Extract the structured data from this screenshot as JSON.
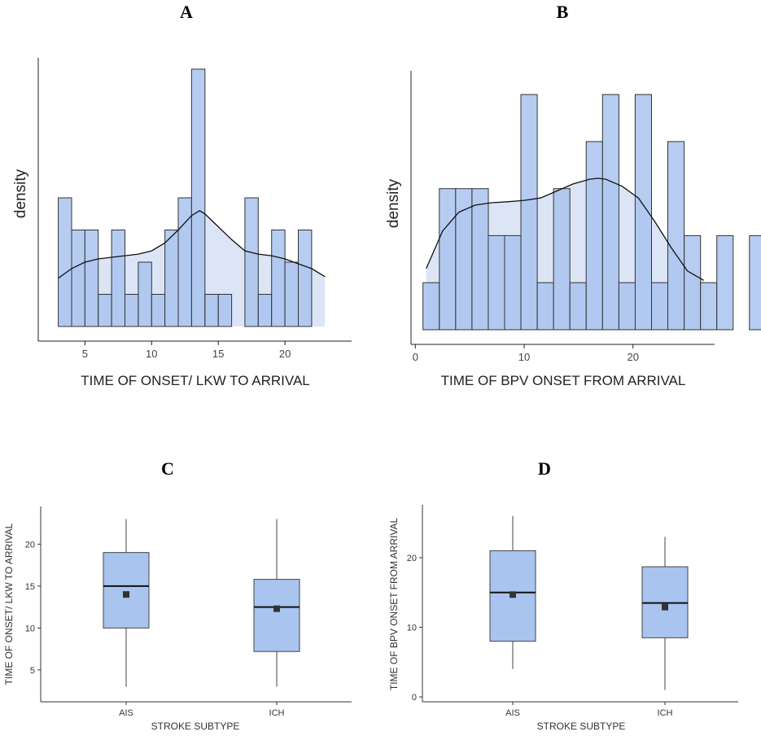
{
  "chart_data": [
    {
      "panel": "A",
      "type": "histogram",
      "title": "A",
      "xlabel": "TIME OF ONSET/ LKW TO ARRIVAL",
      "ylabel": "density",
      "xticks": [
        5,
        10,
        15,
        20
      ],
      "xlim": [
        1.5,
        25
      ],
      "ylim": [
        0,
        8.2
      ],
      "bin_start": 3,
      "bin_width": 1,
      "counts": [
        4,
        3,
        3,
        1,
        3,
        1,
        2,
        1,
        3,
        4,
        8,
        1,
        1,
        0,
        4,
        1,
        3,
        2,
        3
      ],
      "density_curve": {
        "x": [
          3,
          4,
          5,
          6,
          7,
          8,
          9,
          10,
          11,
          12,
          13,
          13.6,
          14,
          15,
          16,
          17,
          18,
          19,
          20,
          21,
          22,
          23
        ],
        "y": [
          1.5,
          1.8,
          2.0,
          2.1,
          2.15,
          2.2,
          2.25,
          2.35,
          2.6,
          3.0,
          3.45,
          3.6,
          3.5,
          3.1,
          2.7,
          2.35,
          2.25,
          2.2,
          2.1,
          1.95,
          1.8,
          1.55
        ]
      }
    },
    {
      "panel": "B",
      "type": "histogram",
      "title": "B",
      "xlabel": "TIME OF BPV ONSET FROM ARRIVAL",
      "ylabel": "density",
      "xticks": [
        0,
        10,
        20
      ],
      "xlim": [
        -0.4,
        27.5
      ],
      "ylim": [
        0,
        5.4
      ],
      "bin_start": 0.7,
      "bin_width": 1.5,
      "counts": [
        1,
        3,
        3,
        3,
        2,
        2,
        5,
        1,
        3,
        1,
        4,
        5,
        1,
        5,
        1,
        4,
        2,
        1,
        2,
        0,
        2
      ],
      "density_curve": {
        "x": [
          1.0,
          2.5,
          4,
          5.5,
          7,
          8.5,
          10,
          11.5,
          13,
          14.5,
          16,
          16.8,
          17.5,
          19,
          20.5,
          22,
          23.5,
          25,
          26.5
        ],
        "y": [
          1.3,
          2.1,
          2.5,
          2.65,
          2.7,
          2.72,
          2.75,
          2.8,
          2.95,
          3.1,
          3.2,
          3.22,
          3.2,
          3.05,
          2.8,
          2.3,
          1.75,
          1.25,
          1.05
        ]
      }
    },
    {
      "panel": "C",
      "type": "box",
      "title": "C",
      "xlabel": "STROKE SUBTYPE",
      "ylabel": "TIME OF ONSET/ LKW TO ARRIVAL",
      "categories": [
        "AIS",
        "ICH"
      ],
      "yticks": [
        5,
        10,
        15,
        20
      ],
      "ylim": [
        1.2,
        24.5
      ],
      "boxes": [
        {
          "min": 3,
          "q1": 10,
          "median": 15,
          "q3": 19,
          "max": 23,
          "mean": 14
        },
        {
          "min": 3,
          "q1": 7.2,
          "median": 12.5,
          "q3": 15.8,
          "max": 23,
          "mean": 12.3
        }
      ]
    },
    {
      "panel": "D",
      "type": "box",
      "title": "D",
      "xlabel": "STROKE SUBTYPE",
      "ylabel": "TIME OF BPV ONSET FROM ARRIVAL",
      "categories": [
        "AIS",
        "ICH"
      ],
      "yticks": [
        0,
        10,
        20
      ],
      "ylim": [
        -0.7,
        27.6
      ],
      "boxes": [
        {
          "min": 4,
          "q1": 8,
          "median": 15,
          "q3": 21,
          "max": 26,
          "mean": 14.7
        },
        {
          "min": 1,
          "q1": 8.5,
          "median": 13.5,
          "q3": 18.7,
          "max": 23,
          "mean": 12.9
        }
      ]
    }
  ],
  "colors": {
    "bar_fill": "#a9c4ef",
    "density_fill": "#dbe5f5",
    "box_fill": "#a9c4ef",
    "outline": "#333333",
    "mean_marker": "#333333"
  }
}
